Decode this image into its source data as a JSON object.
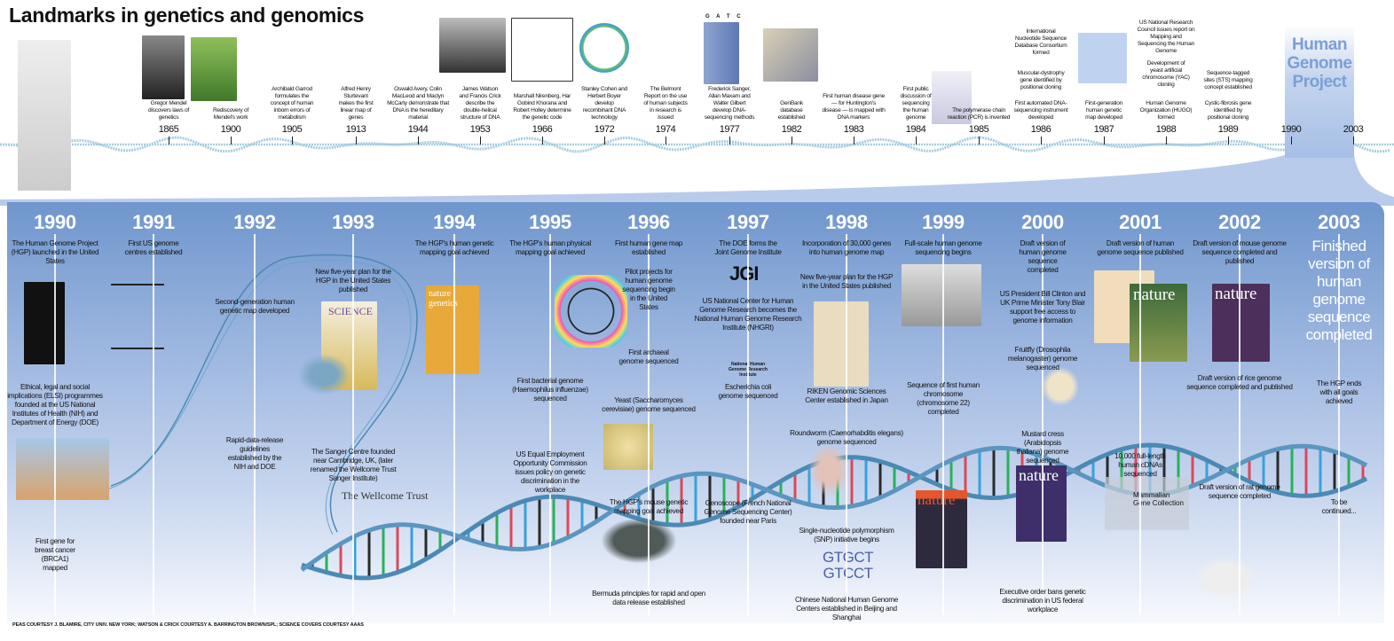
{
  "title": "Landmarks in genetics and genomics",
  "colors": {
    "panel_top": "#6f96cd",
    "hgp_label": "#7b9fd6",
    "helix": "#4a8ab5",
    "rope": "#a8cde0"
  },
  "top_timeline": {
    "hgp_label": "Human Genome Project",
    "items": [
      {
        "year": "1865",
        "events": [
          "Gregor Mendel discovers laws of genetics"
        ]
      },
      {
        "year": "1900",
        "events": [
          "Rediscovery of Mendel's work"
        ]
      },
      {
        "year": "1905",
        "events": [
          "Archibald Garrod formulates the concept of human inborn errors of metabolism"
        ]
      },
      {
        "year": "1913",
        "events": [
          "Alfred Henry Sturtevant makes the first linear map of genes"
        ]
      },
      {
        "year": "1944",
        "events": [
          "Oswald Avery, Colin MacLeod and Maclyn McCarty demonstrate that DNA is the hereditary material"
        ]
      },
      {
        "year": "1953",
        "events": [
          "James Watson and Francis Crick describe the double-helical structure of DNA"
        ]
      },
      {
        "year": "1966",
        "events": [
          "Marshall Nirenberg, Har Gobind Khorana and Robert Holley determine the genetic code"
        ]
      },
      {
        "year": "1972",
        "events": [
          "Stanley Cohen and Herbert Boyer develop recombinant DNA technology"
        ]
      },
      {
        "year": "1974",
        "events": [
          "The Belmont Report on the use of human subjects in research is issued"
        ]
      },
      {
        "year": "1977",
        "events": [
          "Frederick Sanger, Allan Maxam and Walter Gilbert develop DNA-sequencing methods"
        ]
      },
      {
        "year": "1982",
        "events": [
          "GenBank database established"
        ]
      },
      {
        "year": "1983",
        "events": [
          "First human disease gene — for Huntington's disease — is mapped with DNA markers"
        ]
      },
      {
        "year": "1984",
        "events": [
          "First public discussion of sequencing the human genome"
        ]
      },
      {
        "year": "1985",
        "events": [
          "The polymerase chain reaction (PCR) is invented"
        ]
      },
      {
        "year": "1986",
        "events": [
          "International Nucleotide Sequence Database Consortium formed",
          "Muscular-dystrophy gene identified by positional cloning",
          "First automated DNA-sequencing instrument developed"
        ]
      },
      {
        "year": "1987",
        "events": [
          "First-generation human genetic map developed"
        ]
      },
      {
        "year": "1988",
        "events": [
          "US National Research Council issues report on Mapping and Sequencing the Human Genome",
          "Development of yeast artificial chromosome (YAC) cloning",
          "Human Genome Organization (HUGO) formed"
        ]
      },
      {
        "year": "1989",
        "events": [
          "Sequence-tagged sites (STS) mapping concept established",
          "Cystic-fibrosis gene identified by positional cloning"
        ]
      },
      {
        "year": "1990",
        "events": []
      },
      {
        "year": "2003",
        "events": []
      }
    ]
  },
  "lower_timeline": {
    "items": [
      {
        "year": "1990",
        "events": [
          "The Human Genome Project (HGP) launched in the United States",
          "Ethical, legal and social implications (ELSI) programmes founded at the US National Institutes of Health (NIH) and Department of Energy (DOE)",
          "First gene for breast cancer (BRCA1) mapped"
        ]
      },
      {
        "year": "1991",
        "events": [
          "First US genome centres established"
        ]
      },
      {
        "year": "1992",
        "events": [
          "Second-generation human genetic map developed",
          "Rapid-data-release guidelines established by the NIH and DOE"
        ]
      },
      {
        "year": "1993",
        "events": [
          "New five-year plan for the HGP in the United States published",
          "The Sanger Centre founded near Cambridge, UK, (later renamed the Wellcome Trust Sanger Institute)"
        ]
      },
      {
        "year": "1994",
        "events": [
          "The HGP's human genetic mapping goal achieved"
        ]
      },
      {
        "year": "1995",
        "events": [
          "The HGP's human physical mapping goal achieved",
          "First bacterial genome (Haemophilus influenzae) sequenced",
          "US Equal Employment Opportunity Commission issues policy on genetic discrimination in the workplace"
        ]
      },
      {
        "year": "1996",
        "events": [
          "First human gene map established",
          "Pilot projects for human genome sequencing begin in the United States",
          "First archaeal genome sequenced",
          "Yeast (Saccharomyces cerevisiae) genome sequenced",
          "The HGP's mouse genetic mapping goal achieved",
          "Bermuda principles for rapid and open data release established"
        ]
      },
      {
        "year": "1997",
        "events": [
          "The DOE forms the Joint Genome Institute",
          "US National Center for Human Genome Research becomes the National Human Genome Research Institute (NHGRI)",
          "Escherichia coli genome sequenced",
          "Genoscope (French National Genome Sequencing Center) founded near Paris"
        ]
      },
      {
        "year": "1998",
        "events": [
          "Incorporation of 30,000 genes into human genome map",
          "New five-year plan for the HGP in the United States published",
          "RIKEN Genomic Sciences Center established in Japan",
          "Roundworm (Caenorhabditis elegans) genome sequenced",
          "Single-nucleotide polymorphism (SNP) initiative begins",
          "Chinese National Human Genome Centers established in Beijing and Shanghai"
        ]
      },
      {
        "year": "1999",
        "events": [
          "Full-scale human genome sequencing begins",
          "Sequence of first human chromosome (chromosome 22) completed"
        ]
      },
      {
        "year": "2000",
        "events": [
          "Draft version of human genome sequence completed",
          "US President Bill Clinton and UK Prime Minister Tony Blair support free access to genome information",
          "Fruitfly (Drosophila melanogaster) genome sequenced",
          "Mustard cress (Arabidopsis thaliana) genome sequenced",
          "Executive order bans genetic discrimination in US federal workplace"
        ]
      },
      {
        "year": "2001",
        "events": [
          "Draft version of human genome sequence published",
          "10,000 full-length human cDNAs sequenced"
        ]
      },
      {
        "year": "2002",
        "events": [
          "Draft version of mouse genome sequence completed and published",
          "Draft version of rice genome sequence completed and published",
          "Draft version of rat genome sequence completed"
        ]
      },
      {
        "year": "2003",
        "events": [
          "Finished version of human genome sequence completed",
          "The HGP ends with all goals achieved",
          "To be continued..."
        ]
      }
    ]
  },
  "logos": {
    "wellcome": "The Wellcome Trust",
    "jgi": "JGI",
    "nhgri": "National Human Genome Research Institute",
    "mgc": "Mammalian Gene Collection",
    "nature": "nature",
    "science": "SCIENCE",
    "nature_genetics": "nature genetics"
  },
  "snp": {
    "line1": "GTGCT",
    "line2": "GTCCT"
  },
  "gel_lanes": "G A T C",
  "credit": "PEAS COURTESY J. BLAMIRE, CITY UNIV. NEW YORK; WATSON & CRICK COURTESY A. BARRINGTON BROWN/SPL; SCIENCE COVERS COURTESY AAAS"
}
